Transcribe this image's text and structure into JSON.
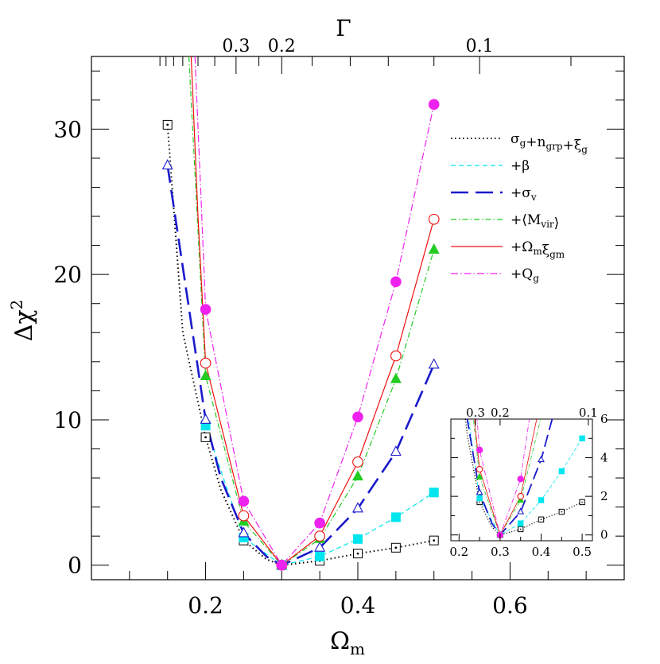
{
  "chart_data": {
    "type": "line",
    "title": "",
    "xlabel": "Ω",
    "xlabel_sub": "m",
    "ylabel": "Δχ",
    "ylabel_sup": "2",
    "top_axis_label": "Γ",
    "xlim": [
      0.05,
      0.75
    ],
    "ylim": [
      -1,
      35
    ],
    "x_ticks": [
      0.2,
      0.4,
      0.6
    ],
    "x_tick_labels": [
      "0.2",
      "0.4",
      "0.6"
    ],
    "y_ticks": [
      0,
      10,
      20,
      30
    ],
    "y_tick_labels": [
      "0",
      "10",
      "20",
      "30"
    ],
    "gamma_ticks": [
      {
        "label": "0.3",
        "omega_m": 0.24
      },
      {
        "label": "0.2",
        "omega_m": 0.3
      },
      {
        "label": "0.1",
        "omega_m": 0.56
      }
    ],
    "legend_position": "upper-right",
    "series": [
      {
        "name_parts": [
          [
            "σ",
            ""
          ],
          [
            "g",
            "sub"
          ],
          [
            "+n",
            ""
          ],
          [
            "grp",
            "sub"
          ],
          [
            "+ξ",
            ""
          ],
          [
            "g",
            "sub"
          ]
        ],
        "color": "#000000",
        "dash": "1.5,3.5",
        "width": 2,
        "marker": "open-square-dot",
        "x": [
          0.15,
          0.2,
          0.25,
          0.3,
          0.35,
          0.4,
          0.45,
          0.5
        ],
        "y": [
          30.3,
          8.8,
          1.7,
          0.0,
          0.3,
          0.8,
          1.2,
          1.7
        ],
        "curve_x": [
          0.15,
          0.17,
          0.2,
          0.22,
          0.25,
          0.28,
          0.3,
          0.35,
          0.4,
          0.45,
          0.5
        ],
        "curve_y": [
          30.3,
          16,
          8.8,
          5.2,
          1.7,
          0.4,
          0.0,
          0.3,
          0.8,
          1.2,
          1.7
        ]
      },
      {
        "name_parts": [
          [
            "+β",
            ""
          ]
        ],
        "color": "#00e5ee",
        "dash": "6,4",
        "width": 1.2,
        "marker": "filled-square",
        "x": [
          0.2,
          0.25,
          0.3,
          0.35,
          0.4,
          0.45,
          0.5
        ],
        "y": [
          9.6,
          1.9,
          0.0,
          0.6,
          1.8,
          3.3,
          5.0
        ],
        "curve_x": [
          0.2,
          0.25,
          0.3,
          0.35,
          0.4,
          0.45,
          0.5
        ],
        "curve_y": [
          9.6,
          1.9,
          0.0,
          0.6,
          1.8,
          3.3,
          5.0
        ]
      },
      {
        "name_parts": [
          [
            "+σ",
            ""
          ],
          [
            "v",
            "sub"
          ]
        ],
        "color": "#1a1acd",
        "dash": "22,9",
        "width": 2.6,
        "marker": "open-triangle",
        "x": [
          0.15,
          0.2,
          0.25,
          0.3,
          0.35,
          0.4,
          0.45,
          0.5
        ],
        "y": [
          27.5,
          10.0,
          2.2,
          0.0,
          1.2,
          3.9,
          7.8,
          13.8
        ],
        "curve_x": [
          0.15,
          0.17,
          0.2,
          0.22,
          0.25,
          0.28,
          0.3,
          0.35,
          0.4,
          0.45,
          0.5
        ],
        "curve_y": [
          27.5,
          20.5,
          10.0,
          6.0,
          2.2,
          0.6,
          0.0,
          1.2,
          3.9,
          7.8,
          13.8
        ]
      },
      {
        "name_parts": [
          [
            "+⟨M",
            ""
          ],
          [
            "vir",
            "sub"
          ],
          [
            "⟩",
            ""
          ]
        ],
        "color": "#22cc22",
        "dash": "7,3,1.5,3",
        "width": 1.2,
        "marker": "filled-triangle",
        "x": [
          0.2,
          0.25,
          0.3,
          0.35,
          0.4,
          0.45,
          0.5
        ],
        "y": [
          13.0,
          3.0,
          0.0,
          1.8,
          6.1,
          12.8,
          21.7
        ],
        "curve_x": [
          0.178,
          0.19,
          0.2,
          0.25,
          0.3,
          0.35,
          0.4,
          0.45,
          0.5
        ],
        "curve_y": [
          35,
          23,
          13.0,
          3.0,
          0.0,
          1.8,
          6.1,
          12.8,
          21.7
        ]
      },
      {
        "name_parts": [
          [
            "+Ω",
            ""
          ],
          [
            "m",
            "sub"
          ],
          [
            "ξ",
            ""
          ],
          [
            "gm",
            "sub"
          ]
        ],
        "color": "#ee1111",
        "dash": "",
        "width": 1.2,
        "marker": "open-circle",
        "x": [
          0.2,
          0.25,
          0.3,
          0.35,
          0.4,
          0.45,
          0.5
        ],
        "y": [
          13.9,
          3.4,
          0.0,
          2.0,
          7.1,
          14.4,
          23.8
        ],
        "curve_x": [
          0.181,
          0.19,
          0.2,
          0.25,
          0.3,
          0.35,
          0.4,
          0.45,
          0.5
        ],
        "curve_y": [
          35,
          24,
          13.9,
          3.4,
          0.0,
          2.0,
          7.1,
          14.4,
          23.8
        ]
      },
      {
        "name_parts": [
          [
            "+Q",
            ""
          ],
          [
            "g",
            "sub"
          ]
        ],
        "color": "#ee22ee",
        "dash": "9,3,1.5,3",
        "width": 1.2,
        "marker": "filled-circle",
        "x": [
          0.2,
          0.25,
          0.3,
          0.35,
          0.4,
          0.45,
          0.5
        ],
        "y": [
          17.6,
          4.4,
          0.0,
          2.9,
          10.2,
          19.5,
          31.7
        ],
        "curve_x": [
          0.186,
          0.195,
          0.2,
          0.25,
          0.3,
          0.35,
          0.4,
          0.45,
          0.5
        ],
        "curve_y": [
          35,
          24,
          17.6,
          4.4,
          0.0,
          2.9,
          10.2,
          19.5,
          31.7
        ]
      }
    ],
    "inset": {
      "xlim": [
        0.18,
        0.525
      ],
      "ylim": [
        -0.3,
        6
      ],
      "x_ticks": [
        0.2,
        0.3,
        0.4,
        0.5
      ],
      "x_tick_labels": [
        "0.2",
        "0.3",
        "0.4",
        "0.5"
      ],
      "y_ticks": [
        0,
        2,
        4,
        6
      ],
      "y_tick_labels": [
        "0",
        "2",
        "4",
        "6"
      ],
      "gamma_ticks": [
        {
          "label": "0.3",
          "omega_m": 0.24
        },
        {
          "label": "0.2",
          "omega_m": 0.3
        },
        {
          "label": "0.1",
          "omega_m": 0.515
        }
      ]
    }
  }
}
